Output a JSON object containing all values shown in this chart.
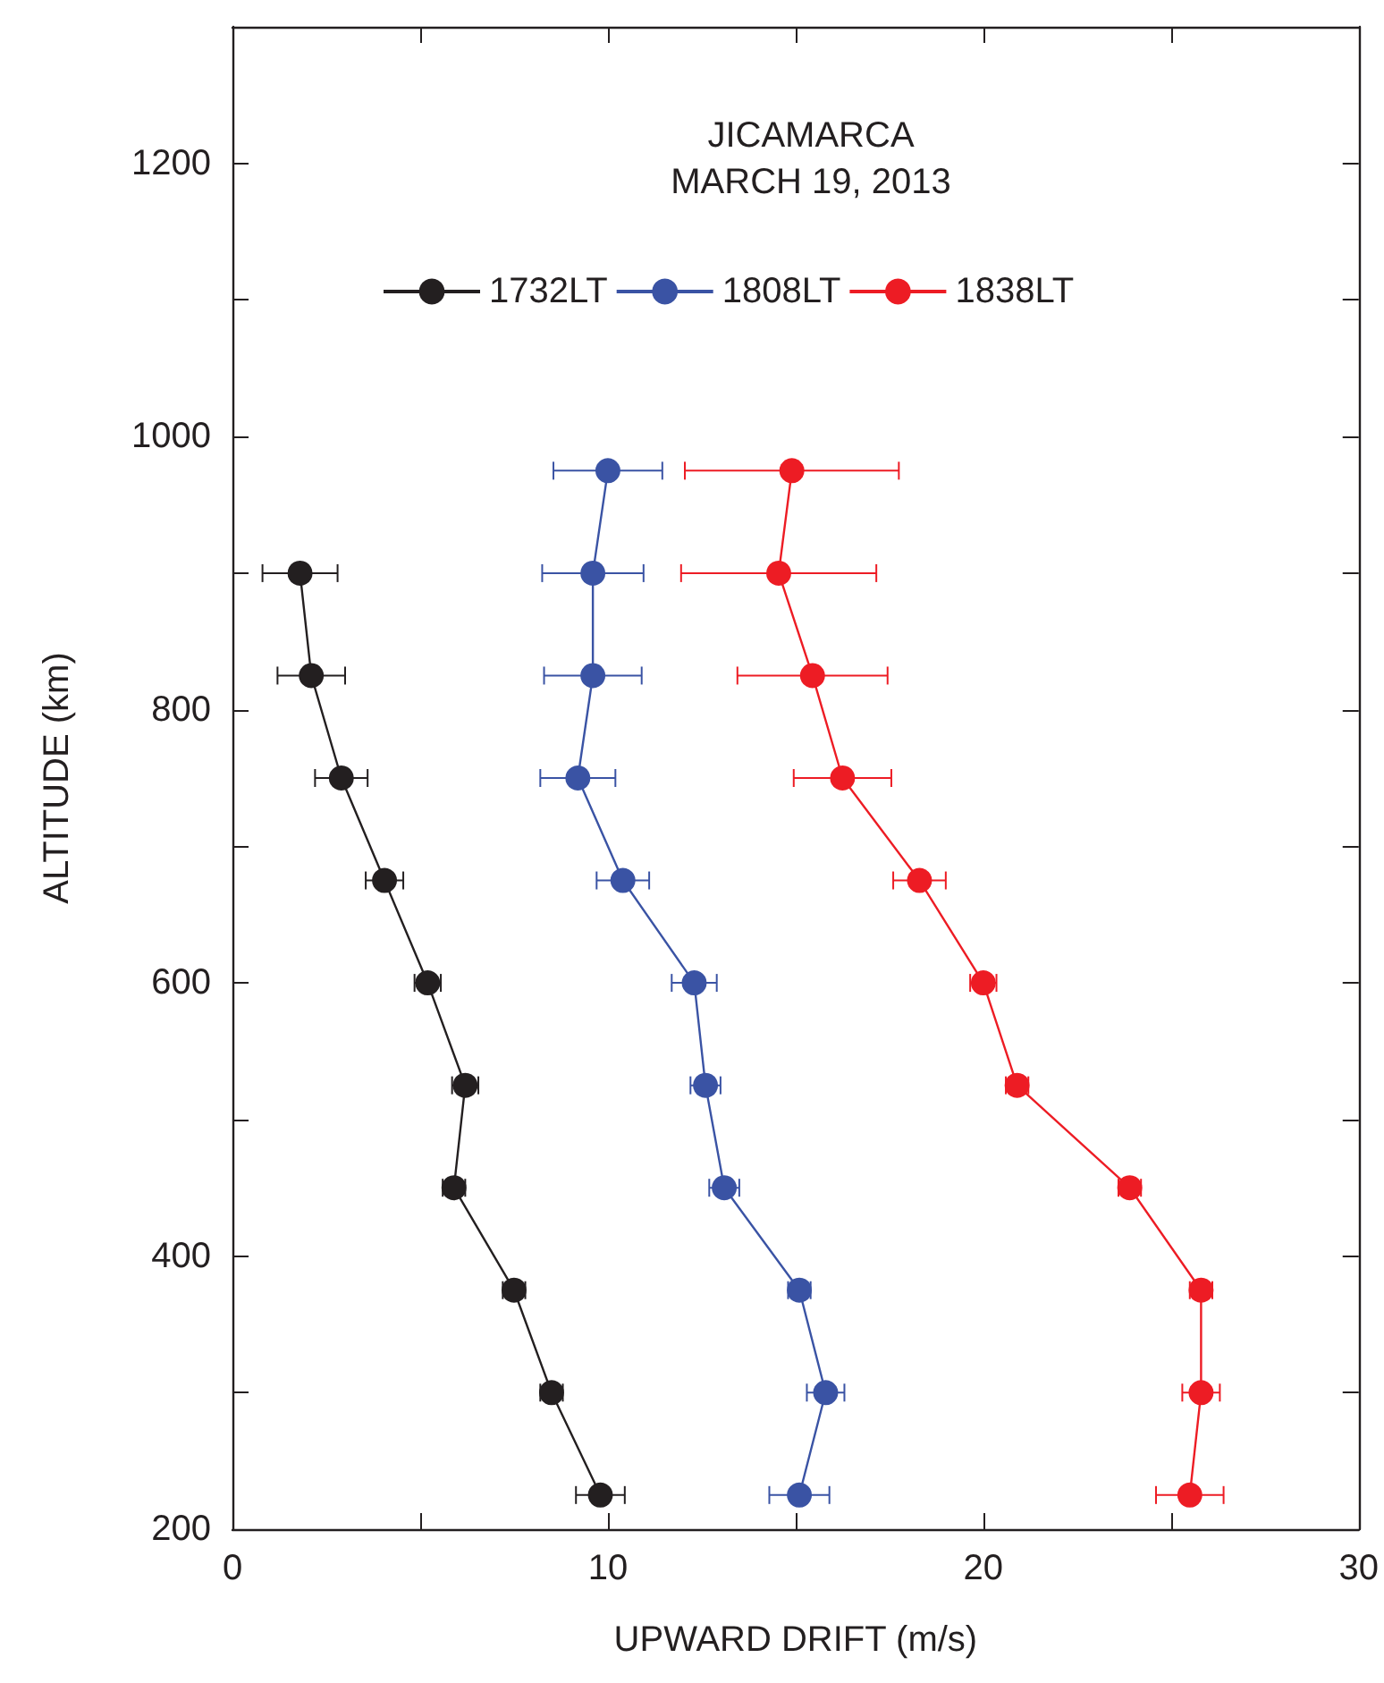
{
  "chart_data": {
    "type": "line",
    "title": "JICAMARCA\nMARCH 19, 2013",
    "xlabel": "UPWARD DRIFT (m/s)",
    "ylabel": "ALTITUDE (km)",
    "xlim": [
      0,
      30
    ],
    "xticks": [
      0,
      {
        "value": 5,
        "label": null
      },
      10,
      {
        "value": 15,
        "label": null
      },
      20,
      {
        "value": 25,
        "label": null
      },
      30
    ],
    "ylim": [
      200,
      1300
    ],
    "yticks": [
      200,
      {
        "value": 300,
        "label": null
      },
      400,
      {
        "value": 500,
        "label": null
      },
      600,
      {
        "value": 700,
        "label": null
      },
      800,
      {
        "value": 900,
        "label": null
      },
      1000,
      {
        "value": 1100,
        "label": null
      },
      1200,
      {
        "value": 1300,
        "label": null
      }
    ],
    "marker": "circle",
    "legend": "top",
    "grid": false,
    "series": [
      {
        "name": "1732LT",
        "color": "#231f20",
        "x": [
          9.8,
          8.5,
          7.5,
          5.9,
          6.2,
          5.2,
          4.05,
          2.9,
          2.1,
          1.8
        ],
        "values": [
          225,
          300,
          375,
          450,
          525,
          600,
          675,
          750,
          825,
          900
        ],
        "xerrors": [
          0.65,
          0.3,
          0.3,
          0.3,
          0.35,
          0.35,
          0.5,
          0.7,
          0.9,
          1.0
        ]
      },
      {
        "name": "1808LT",
        "color": "#3a53a4",
        "x": [
          15.1,
          15.8,
          15.1,
          13.1,
          12.6,
          12.3,
          10.4,
          9.2,
          9.6,
          9.6,
          10.0
        ],
        "values": [
          225,
          300,
          375,
          450,
          525,
          600,
          675,
          750,
          825,
          900,
          975
        ],
        "xerrors": [
          0.8,
          0.5,
          0.3,
          0.4,
          0.4,
          0.6,
          0.7,
          1.0,
          1.3,
          1.35,
          1.45
        ]
      },
      {
        "name": "1838LT",
        "color": "#ed1c24",
        "x": [
          25.5,
          25.8,
          25.8,
          23.9,
          20.9,
          20.0,
          18.3,
          16.25,
          15.45,
          14.55,
          14.9
        ],
        "values": [
          225,
          300,
          375,
          450,
          525,
          600,
          675,
          750,
          825,
          900,
          975
        ],
        "xerrors": [
          0.9,
          0.5,
          0.3,
          0.3,
          0.3,
          0.35,
          0.7,
          1.3,
          2.0,
          2.6,
          2.85
        ]
      }
    ]
  }
}
